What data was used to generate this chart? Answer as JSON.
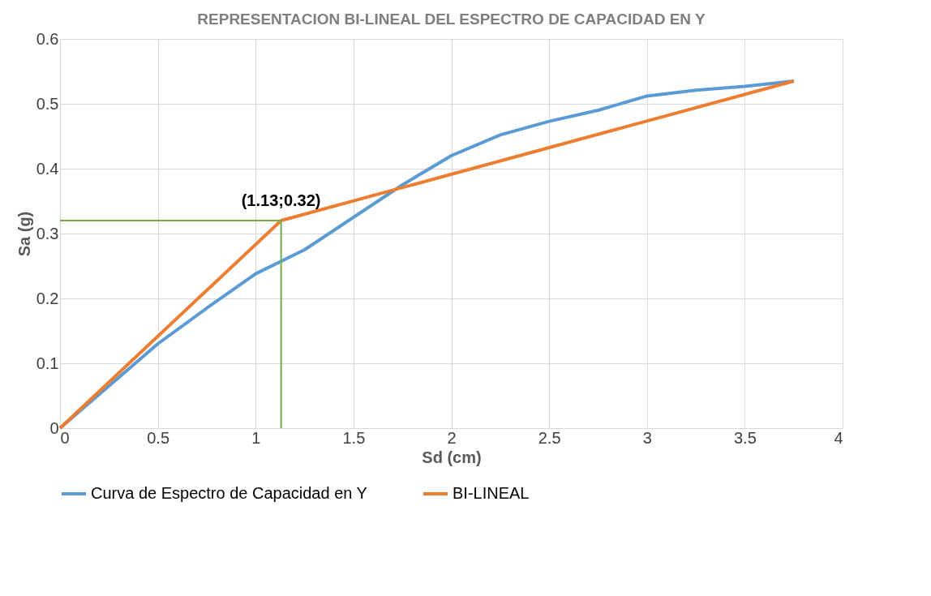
{
  "chart_data": {
    "type": "line",
    "title": "REPRESENTACION BI-LINEAL DEL ESPECTRO DE CAPACIDAD EN Y",
    "xlabel": "Sd (cm)",
    "ylabel": "Sa (g)",
    "xlim": [
      0,
      4
    ],
    "xticks": [
      0,
      0.5,
      1,
      1.5,
      2,
      2.5,
      3,
      3.5,
      4
    ],
    "ylim": [
      0,
      0.6
    ],
    "yticks": [
      0,
      0.1,
      0.2,
      0.3,
      0.4,
      0.5,
      0.6
    ],
    "grid": true,
    "legend": "bottom",
    "marker": "none",
    "line_style": "solid",
    "annotations": [
      {
        "text": "(1.13;0.32)",
        "x": 1.13,
        "y": 0.32
      }
    ],
    "series": [
      {
        "name": "Curva de Espectro de Capacidad en Y",
        "color": "#5b9bd5",
        "x": [
          0,
          0.25,
          0.5,
          0.75,
          1,
          1.25,
          1.5,
          1.75,
          2,
          2.25,
          2.5,
          2.75,
          3,
          3.25,
          3.5,
          3.75
        ],
        "values": [
          0,
          0.065,
          0.13,
          0.185,
          0.238,
          0.275,
          0.325,
          0.375,
          0.42,
          0.452,
          0.473,
          0.49,
          0.512,
          0.521,
          0.527,
          0.535
        ]
      },
      {
        "name": "BI-LINEAL",
        "color": "#ed7d31",
        "x": [
          0,
          1.13,
          3.75
        ],
        "values": [
          0,
          0.32,
          0.535
        ]
      }
    ]
  }
}
